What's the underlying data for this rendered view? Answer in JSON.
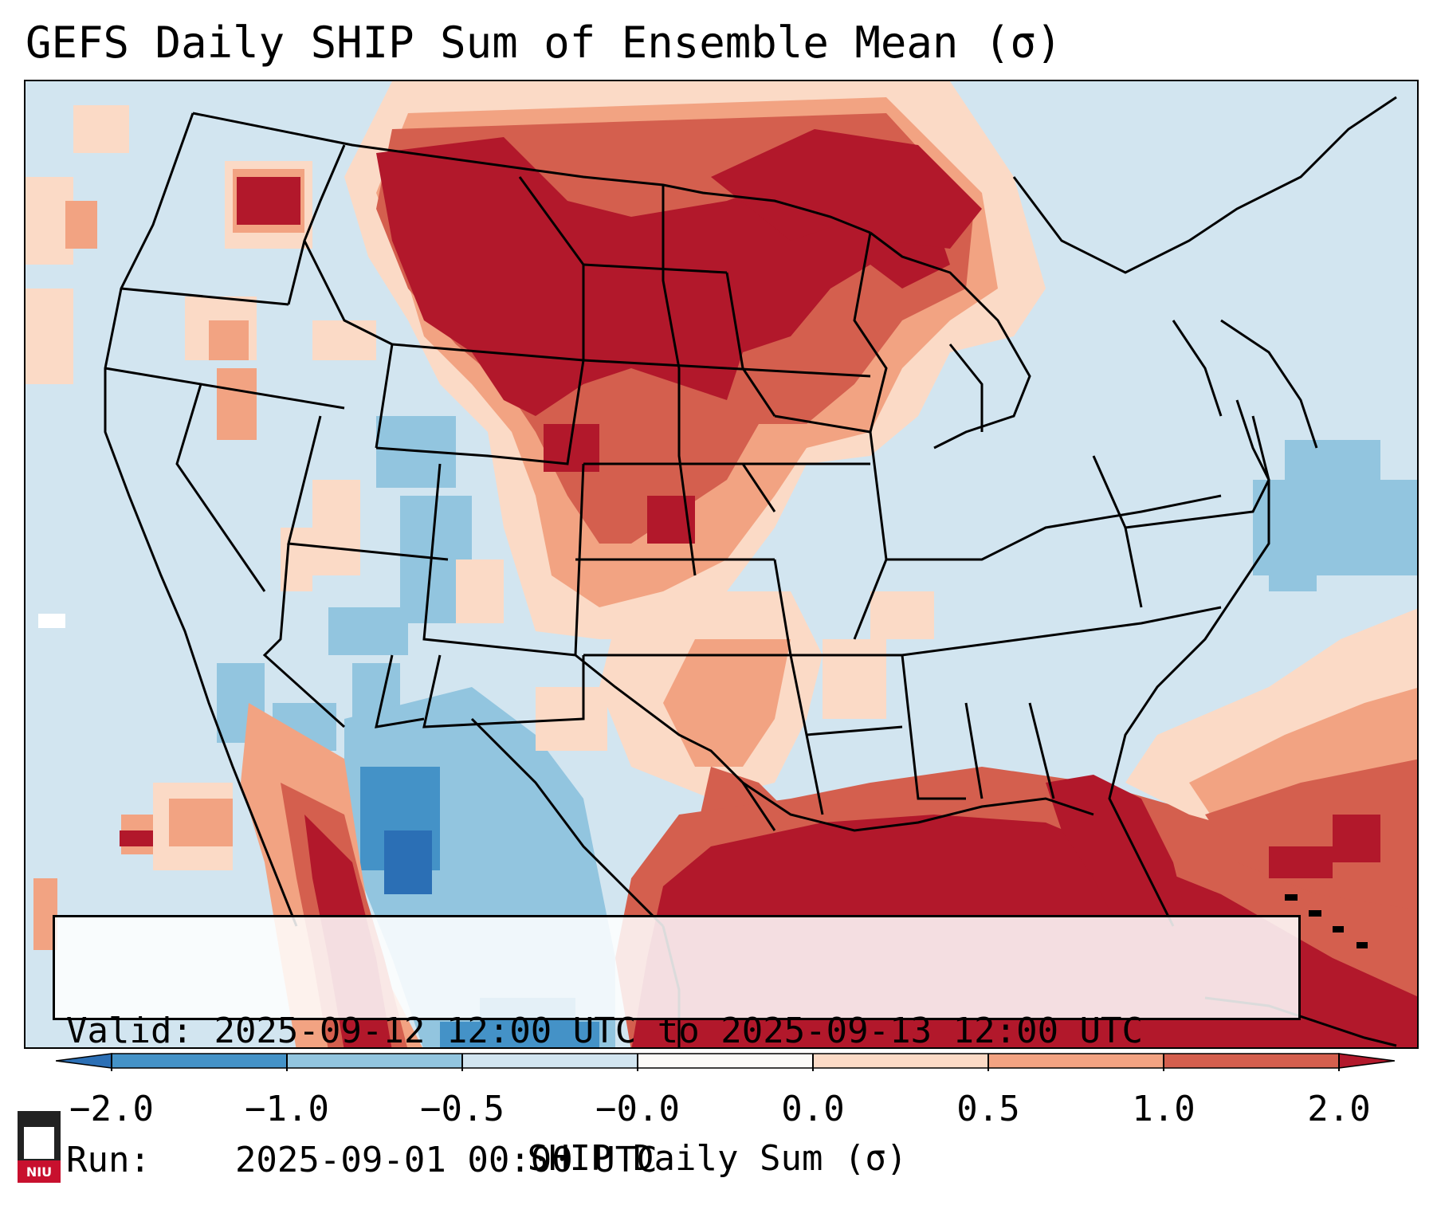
{
  "title": "GEFS Daily SHIP Sum of Ensemble Mean (σ)",
  "info": {
    "valid_label": "Valid:",
    "valid_value": "2025-09-12 12:00 UTC to 2025-09-13 12:00 UTC",
    "run_label": "Run:",
    "run_value": "2025-09-01 00:00 UTC"
  },
  "colorbar": {
    "title": "SHIP Daily Sum (σ)",
    "ticks": [
      "−2.0",
      "−1.0",
      "−0.5",
      "−0.0",
      "0.0",
      "0.5",
      "1.0",
      "2.0"
    ],
    "bin_colors": [
      "#2b6fb5",
      "#4492c7",
      "#92c5df",
      "#d2e5f0",
      "#fbfaf8",
      "#fbdac6",
      "#f2a382",
      "#d45f4e",
      "#b2182b"
    ]
  },
  "map": {
    "region": "Continental United States",
    "palette": {
      "ocean_neutral": "#d2e5f0",
      "light_red": "#fbdac6",
      "mid_red": "#f2a382",
      "strong_red": "#d45f4e",
      "extreme_red": "#b2182b",
      "light_blue": "#92c5df",
      "mid_blue": "#4492c7"
    }
  },
  "logo": {
    "label": "NIU"
  }
}
